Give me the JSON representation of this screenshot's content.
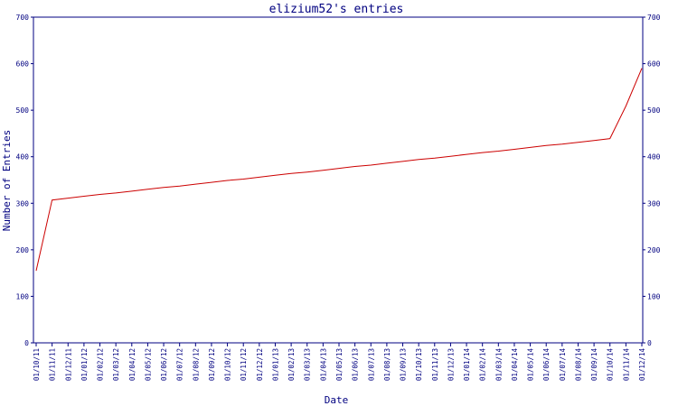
{
  "chart_data": {
    "type": "line",
    "title": "elizium52's entries",
    "xlabel": "Date",
    "ylabel": "Number of Entries",
    "ylim": [
      0,
      700
    ],
    "yticks": [
      0,
      100,
      200,
      300,
      400,
      500,
      600,
      700
    ],
    "grid": false,
    "line_color": "#cc0000",
    "axis_color": "#000080",
    "categories": [
      "01/10/11",
      "01/11/11",
      "01/12/11",
      "01/01/12",
      "01/02/12",
      "01/03/12",
      "01/04/12",
      "01/05/12",
      "01/06/12",
      "01/07/12",
      "01/08/12",
      "01/09/12",
      "01/10/12",
      "01/11/12",
      "01/12/12",
      "01/01/13",
      "01/02/13",
      "01/03/13",
      "01/04/13",
      "01/05/13",
      "01/06/13",
      "01/07/13",
      "01/08/13",
      "01/09/13",
      "01/10/13",
      "01/11/13",
      "01/12/13",
      "01/01/14",
      "01/02/14",
      "01/03/14",
      "01/04/14",
      "01/05/14",
      "01/06/14",
      "01/07/14",
      "01/08/14",
      "01/09/14",
      "01/10/14",
      "01/11/14",
      "01/12/14"
    ],
    "series": [
      {
        "values": [
          155,
          307,
          311,
          315,
          319,
          322,
          326,
          330,
          334,
          337,
          341,
          345,
          349,
          352,
          356,
          360,
          364,
          367,
          371,
          375,
          379,
          382,
          386,
          390,
          394,
          397,
          401,
          405,
          409,
          412,
          416,
          420,
          424,
          427,
          431,
          435,
          439,
          509,
          590
        ]
      }
    ]
  }
}
